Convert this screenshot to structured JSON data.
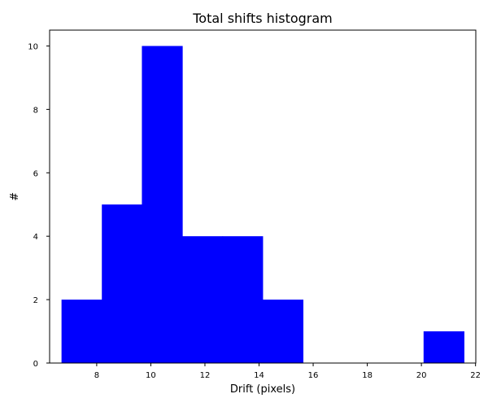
{
  "chart_data": {
    "type": "bar",
    "title": "Total shifts histogram",
    "xlabel": "Drift (pixels)",
    "ylabel": "#",
    "bar_color": "#0000ff",
    "bins": [
      {
        "x0": 6.7,
        "x1": 8.19,
        "count": 2
      },
      {
        "x0": 8.19,
        "x1": 9.67,
        "count": 5
      },
      {
        "x0": 9.67,
        "x1": 11.16,
        "count": 10
      },
      {
        "x0": 11.16,
        "x1": 12.65,
        "count": 4
      },
      {
        "x0": 12.65,
        "x1": 14.13,
        "count": 4
      },
      {
        "x0": 14.13,
        "x1": 15.62,
        "count": 2
      },
      {
        "x0": 15.62,
        "x1": 17.11,
        "count": 0
      },
      {
        "x0": 17.11,
        "x1": 18.6,
        "count": 0
      },
      {
        "x0": 18.6,
        "x1": 20.08,
        "count": 0
      },
      {
        "x0": 20.08,
        "x1": 21.57,
        "count": 1
      }
    ],
    "xlim": [
      6.26,
      22.01
    ],
    "ylim": [
      0,
      10.5
    ],
    "xticks": [
      8,
      10,
      12,
      14,
      16,
      18,
      20,
      22
    ],
    "yticks": [
      0,
      2,
      4,
      6,
      8,
      10
    ],
    "grid": false
  }
}
